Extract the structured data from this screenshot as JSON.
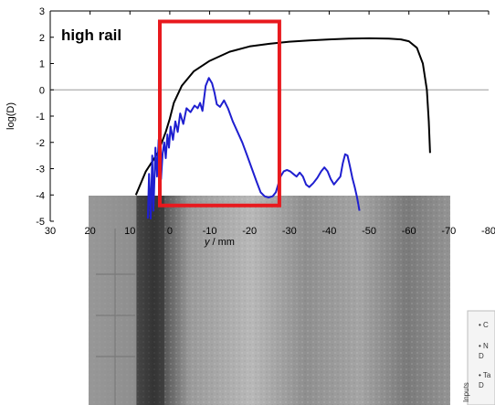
{
  "chart_data": {
    "type": "line",
    "title": "high rail",
    "xlabel": "y / mm",
    "ylabel": "log(D)",
    "xlim": [
      30,
      -80
    ],
    "ylim": [
      -5,
      3
    ],
    "x_ticks": [
      30,
      20,
      10,
      0,
      -10,
      -20,
      -30,
      -40,
      -50,
      -60,
      -70,
      -80
    ],
    "y_ticks": [
      3,
      2,
      1,
      0,
      -1,
      -2,
      -3,
      -4,
      -5
    ],
    "reference_line_y": 0,
    "highlight_region": {
      "x": [
        2.5,
        -27.5
      ],
      "y": [
        -4.4,
        2.6
      ],
      "color": "#e8191e"
    },
    "series": [
      {
        "color": "#000000",
        "points": [
          [
            8.5,
            -4.0
          ],
          [
            6,
            -3.1
          ],
          [
            3,
            -2.4
          ],
          [
            1,
            -1.6
          ],
          [
            0,
            -1.1
          ],
          [
            -1,
            -0.5
          ],
          [
            -3,
            0.15
          ],
          [
            -6,
            0.7
          ],
          [
            -10,
            1.1
          ],
          [
            -15,
            1.45
          ],
          [
            -20,
            1.65
          ],
          [
            -25,
            1.75
          ],
          [
            -30,
            1.83
          ],
          [
            -35,
            1.88
          ],
          [
            -40,
            1.92
          ],
          [
            -45,
            1.95
          ],
          [
            -50,
            1.96
          ],
          [
            -55,
            1.95
          ],
          [
            -58,
            1.92
          ],
          [
            -60,
            1.85
          ],
          [
            -62,
            1.6
          ],
          [
            -63.5,
            1.0
          ],
          [
            -64.5,
            0.0
          ],
          [
            -65,
            -1.2
          ],
          [
            -65.3,
            -2.4
          ]
        ]
      },
      {
        "color": "#1f1fd0",
        "points": [
          [
            5.5,
            -4.9
          ],
          [
            5.2,
            -3.2
          ],
          [
            4.8,
            -4.9
          ],
          [
            4.4,
            -2.5
          ],
          [
            4.1,
            -4.6
          ],
          [
            3.6,
            -2.2
          ],
          [
            3.2,
            -3.3
          ],
          [
            2.8,
            -1.9
          ],
          [
            2.4,
            -2.7
          ],
          [
            2.2,
            -3.4
          ],
          [
            1.8,
            -2.4
          ],
          [
            1.4,
            -2.0
          ],
          [
            1.0,
            -2.6
          ],
          [
            0.6,
            -1.7
          ],
          [
            0.2,
            -2.2
          ],
          [
            -0.2,
            -1.4
          ],
          [
            -0.8,
            -1.9
          ],
          [
            -1.4,
            -1.2
          ],
          [
            -2.0,
            -1.6
          ],
          [
            -2.6,
            -0.9
          ],
          [
            -3.4,
            -1.3
          ],
          [
            -4.2,
            -0.7
          ],
          [
            -5.2,
            -0.85
          ],
          [
            -6.2,
            -0.6
          ],
          [
            -7.0,
            -0.7
          ],
          [
            -7.6,
            -0.5
          ],
          [
            -8.2,
            -0.8
          ],
          [
            -9.0,
            0.15
          ],
          [
            -9.8,
            0.45
          ],
          [
            -10.6,
            0.25
          ],
          [
            -11.2,
            -0.1
          ],
          [
            -11.8,
            -0.55
          ],
          [
            -12.6,
            -0.65
          ],
          [
            -13.6,
            -0.4
          ],
          [
            -14.6,
            -0.7
          ],
          [
            -15.8,
            -1.2
          ],
          [
            -17.0,
            -1.6
          ],
          [
            -18.2,
            -2.0
          ],
          [
            -19.4,
            -2.5
          ],
          [
            -20.6,
            -3.0
          ],
          [
            -21.8,
            -3.5
          ],
          [
            -22.8,
            -3.9
          ],
          [
            -23.8,
            -4.05
          ],
          [
            -24.8,
            -4.1
          ],
          [
            -25.8,
            -4.05
          ],
          [
            -26.6,
            -3.9
          ],
          [
            -27.2,
            -3.6
          ],
          [
            -27.8,
            -3.3
          ],
          [
            -28.6,
            -3.1
          ],
          [
            -29.4,
            -3.05
          ],
          [
            -30.2,
            -3.1
          ],
          [
            -31.0,
            -3.2
          ],
          [
            -31.8,
            -3.3
          ],
          [
            -32.6,
            -3.15
          ],
          [
            -33.4,
            -3.3
          ],
          [
            -34.2,
            -3.6
          ],
          [
            -35.0,
            -3.7
          ],
          [
            -36.0,
            -3.55
          ],
          [
            -37.0,
            -3.35
          ],
          [
            -38.0,
            -3.1
          ],
          [
            -38.8,
            -2.95
          ],
          [
            -39.6,
            -3.1
          ],
          [
            -40.4,
            -3.4
          ],
          [
            -41.2,
            -3.6
          ],
          [
            -42.0,
            -3.45
          ],
          [
            -42.8,
            -3.3
          ],
          [
            -43.4,
            -2.8
          ],
          [
            -44.0,
            -2.45
          ],
          [
            -44.6,
            -2.5
          ],
          [
            -45.2,
            -2.9
          ],
          [
            -45.8,
            -3.35
          ],
          [
            -46.4,
            -3.7
          ],
          [
            -47.0,
            -4.1
          ],
          [
            -47.6,
            -4.6
          ]
        ]
      }
    ]
  },
  "inset": {
    "side_label": "Inputs",
    "bullets": [
      "C",
      "N",
      "D",
      "Ta",
      "D"
    ]
  }
}
